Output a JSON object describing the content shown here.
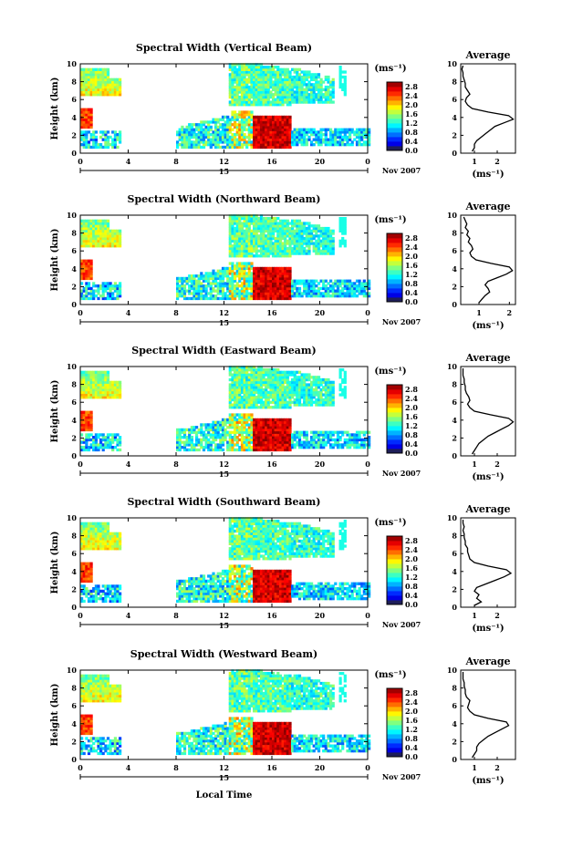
{
  "chart_data": [
    {
      "type": "heatmap",
      "title": "Spectral Width (Vertical Beam)",
      "ylabel": "Height (km)",
      "yticks": [
        "0",
        "2",
        "4",
        "6",
        "8",
        "10"
      ],
      "xticks": [
        "0",
        "4",
        "8",
        "12",
        "16",
        "20",
        "0"
      ],
      "day_label": "15",
      "month_label": "Nov 2007",
      "colorbar": {
        "unit": "(ms⁻¹)",
        "ticks": [
          "0.0",
          "0.4",
          "0.8",
          "1.2",
          "1.6",
          "2.0",
          "2.4",
          "2.8"
        ],
        "range": [
          0,
          3.0
        ]
      },
      "avg": {
        "title": "Average",
        "yticks": [
          "0",
          "2",
          "4",
          "6",
          "8",
          "10"
        ],
        "xticks": [
          "1",
          "2"
        ],
        "xlabel": "(ms⁻¹)",
        "xlim": [
          0.4,
          2.8
        ],
        "heights": [
          0.2,
          0.6,
          1.0,
          1.4,
          1.8,
          2.2,
          2.6,
          3.0,
          3.4,
          3.8,
          4.2,
          4.6,
          5.0,
          5.4,
          5.8,
          6.2,
          6.6,
          7.0,
          7.4,
          7.8,
          8.2,
          8.6,
          9.0,
          9.4,
          9.8
        ],
        "values": [
          0.9,
          1.0,
          1.0,
          1.1,
          1.3,
          1.5,
          1.7,
          1.9,
          2.3,
          2.7,
          2.5,
          1.6,
          0.9,
          0.7,
          0.6,
          0.65,
          0.8,
          0.7,
          0.6,
          0.6,
          0.55,
          0.5,
          0.5,
          0.45,
          0.5
        ]
      }
    },
    {
      "type": "heatmap",
      "title": "Spectral Width (Northward Beam)",
      "ylabel": "Height (km)",
      "yticks": [
        "0",
        "2",
        "4",
        "6",
        "8",
        "10"
      ],
      "xticks": [
        "0",
        "4",
        "8",
        "12",
        "16",
        "20",
        "0"
      ],
      "day_label": "15",
      "month_label": "Nov 2007",
      "colorbar": {
        "unit": "(ms⁻¹)",
        "ticks": [
          "0.0",
          "0.4",
          "0.8",
          "1.2",
          "1.6",
          "2.0",
          "2.4",
          "2.8"
        ],
        "range": [
          0,
          3.0
        ]
      },
      "avg": {
        "title": "Average",
        "yticks": [
          "0",
          "2",
          "4",
          "6",
          "8",
          "10"
        ],
        "xticks": [
          "1",
          "2"
        ],
        "xlabel": "(ms⁻¹)",
        "xlim": [
          0.4,
          2.2
        ],
        "heights": [
          0.2,
          0.6,
          1.0,
          1.4,
          1.8,
          2.2,
          2.6,
          3.0,
          3.4,
          3.8,
          4.2,
          4.6,
          5.0,
          5.4,
          5.8,
          6.2,
          6.6,
          7.0,
          7.4,
          7.8,
          8.2,
          8.6,
          9.0,
          9.4,
          9.8
        ],
        "values": [
          1.0,
          1.1,
          1.2,
          1.35,
          1.3,
          1.2,
          1.3,
          1.6,
          1.9,
          2.1,
          2.0,
          1.4,
          0.9,
          0.75,
          0.7,
          0.8,
          0.75,
          0.65,
          0.7,
          0.6,
          0.65,
          0.55,
          0.6,
          0.55,
          0.5
        ]
      }
    },
    {
      "type": "heatmap",
      "title": "Spectral Width (Eastward Beam)",
      "ylabel": "Height (km)",
      "yticks": [
        "0",
        "2",
        "4",
        "6",
        "8",
        "10"
      ],
      "xticks": [
        "0",
        "4",
        "8",
        "12",
        "16",
        "20",
        "0"
      ],
      "day_label": "15",
      "month_label": "Nov 2007",
      "colorbar": {
        "unit": "(ms⁻¹)",
        "ticks": [
          "0.0",
          "0.4",
          "0.8",
          "1.2",
          "1.6",
          "2.0",
          "2.4",
          "2.8"
        ],
        "range": [
          0,
          3.0
        ]
      },
      "avg": {
        "title": "Average",
        "yticks": [
          "0",
          "2",
          "4",
          "6",
          "8",
          "10"
        ],
        "xticks": [
          "1",
          "2"
        ],
        "xlabel": "(ms⁻¹)",
        "xlim": [
          0.4,
          2.8
        ],
        "heights": [
          0.2,
          0.6,
          1.0,
          1.4,
          1.8,
          2.2,
          2.6,
          3.0,
          3.4,
          3.8,
          4.2,
          4.6,
          5.0,
          5.4,
          5.8,
          6.2,
          6.6,
          7.0,
          7.4,
          7.8,
          8.2,
          8.6,
          9.0,
          9.4,
          9.8
        ],
        "values": [
          0.9,
          1.0,
          1.1,
          1.2,
          1.4,
          1.6,
          1.9,
          2.2,
          2.5,
          2.7,
          2.5,
          1.7,
          1.0,
          0.8,
          0.7,
          0.8,
          0.75,
          0.65,
          0.6,
          0.6,
          0.55,
          0.55,
          0.5,
          0.5,
          0.5
        ]
      }
    },
    {
      "type": "heatmap",
      "title": "Spectral Width (Southward Beam)",
      "ylabel": "Height (km)",
      "yticks": [
        "0",
        "2",
        "4",
        "6",
        "8",
        "10"
      ],
      "xticks": [
        "0",
        "4",
        "8",
        "12",
        "16",
        "20",
        "0"
      ],
      "day_label": "15",
      "month_label": "Nov 2007",
      "colorbar": {
        "unit": "(ms⁻¹)",
        "ticks": [
          "0.0",
          "0.4",
          "0.8",
          "1.2",
          "1.6",
          "2.0",
          "2.4",
          "2.8"
        ],
        "range": [
          0,
          3.0
        ]
      },
      "avg": {
        "title": "Average",
        "yticks": [
          "0",
          "2",
          "4",
          "6",
          "8",
          "10"
        ],
        "xticks": [
          "1",
          "2"
        ],
        "xlabel": "(ms⁻¹)",
        "xlim": [
          0.4,
          2.8
        ],
        "heights": [
          0.2,
          0.6,
          1.0,
          1.4,
          1.8,
          2.2,
          2.6,
          3.0,
          3.4,
          3.8,
          4.2,
          4.6,
          5.0,
          5.4,
          5.8,
          6.2,
          6.6,
          7.0,
          7.4,
          7.8,
          8.2,
          8.6,
          9.0,
          9.4,
          9.8
        ],
        "values": [
          1.0,
          1.3,
          1.1,
          1.2,
          1.0,
          1.1,
          1.5,
          1.9,
          2.3,
          2.6,
          2.4,
          1.6,
          1.0,
          0.8,
          0.75,
          0.7,
          0.7,
          0.6,
          0.6,
          0.55,
          0.55,
          0.5,
          0.55,
          0.5,
          0.5
        ]
      }
    },
    {
      "type": "heatmap",
      "title": "Spectral Width (Westward Beam)",
      "ylabel": "Height (km)",
      "yticks": [
        "0",
        "2",
        "4",
        "6",
        "8",
        "10"
      ],
      "xticks": [
        "0",
        "4",
        "8",
        "12",
        "16",
        "20",
        "0"
      ],
      "day_label": "15",
      "month_label": "Nov 2007",
      "xlabel": "Local Time",
      "colorbar": {
        "unit": "(ms⁻¹)",
        "ticks": [
          "0.0",
          "0.4",
          "0.8",
          "1.2",
          "1.6",
          "2.0",
          "2.4",
          "2.8"
        ],
        "range": [
          0,
          3.0
        ]
      },
      "avg": {
        "title": "Average",
        "yticks": [
          "0",
          "2",
          "4",
          "6",
          "8",
          "10"
        ],
        "xticks": [
          "1",
          "2"
        ],
        "xlabel": "(ms⁻¹)",
        "xlim": [
          0.4,
          2.8
        ],
        "heights": [
          0.2,
          0.6,
          1.0,
          1.4,
          1.8,
          2.2,
          2.6,
          3.0,
          3.4,
          3.8,
          4.2,
          4.6,
          5.0,
          5.4,
          5.8,
          6.2,
          6.6,
          7.0,
          7.4,
          7.8,
          8.2,
          8.6,
          9.0,
          9.4,
          9.8
        ],
        "values": [
          0.9,
          1.0,
          1.1,
          1.1,
          1.2,
          1.4,
          1.6,
          1.9,
          2.2,
          2.5,
          2.4,
          1.6,
          1.0,
          0.8,
          0.7,
          0.75,
          0.8,
          0.65,
          0.6,
          0.6,
          0.55,
          0.55,
          0.5,
          0.5,
          0.5
        ]
      }
    }
  ]
}
